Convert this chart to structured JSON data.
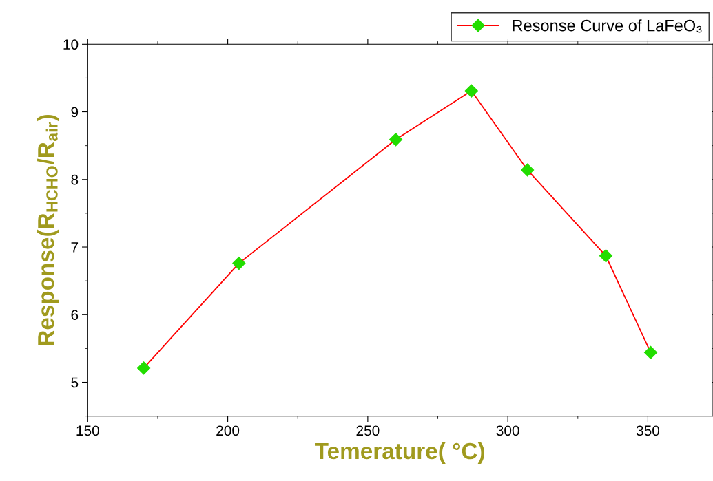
{
  "chart_data": {
    "type": "line",
    "xlabel": "Temerature( °C)",
    "ylabel": "Response(R$_{HCHO}$/R$_{air}$)",
    "x": [
      170,
      204,
      260,
      287,
      307,
      335,
      351
    ],
    "series": [
      {
        "name": "Resonse Curve of LaFeO₃",
        "color": "#ff0000",
        "values": [
          5.21,
          6.76,
          8.59,
          9.31,
          8.14,
          6.87,
          5.44
        ]
      }
    ],
    "marker": "diamond",
    "line_style": "solid",
    "xlim": [
      150,
      373
    ],
    "xticks": [
      150,
      200,
      250,
      300,
      350
    ],
    "ylim": [
      4.5,
      10
    ],
    "yticks": [
      5,
      6,
      7,
      8,
      9,
      10
    ],
    "grid": false,
    "legend": "top right"
  }
}
